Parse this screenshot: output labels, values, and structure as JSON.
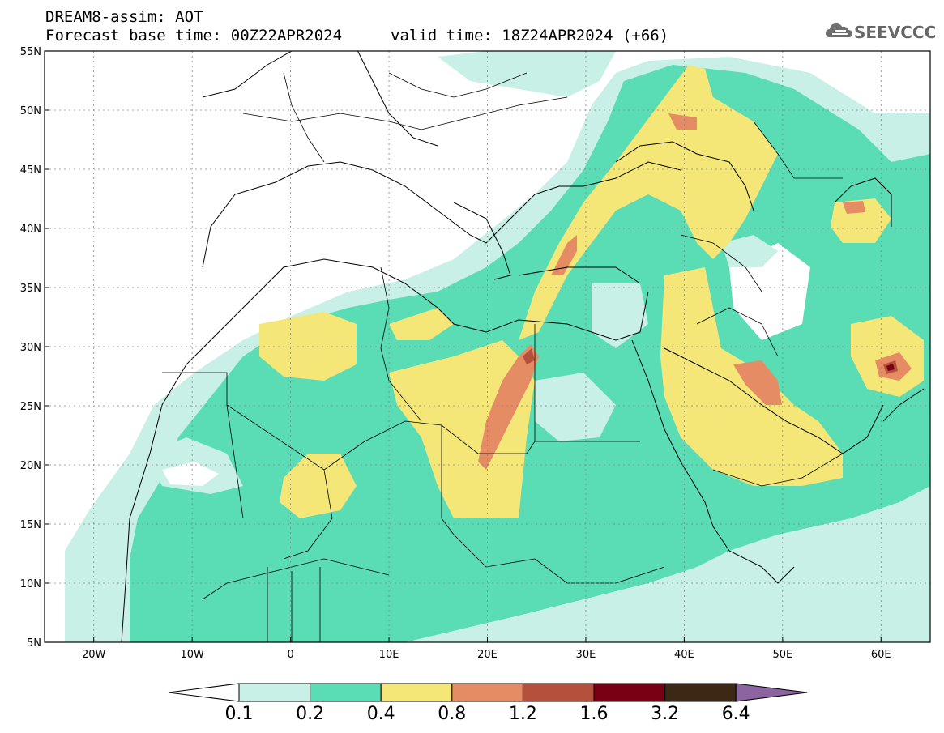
{
  "header": {
    "line1": "DREAM8-assim: AOT",
    "line2": "Forecast base time: 00Z22APR2024",
    "valid": "valid time: 18Z24APR2024 (+66)"
  },
  "logo": {
    "text": "SEEVCCC",
    "icon": "cloud-logo-icon"
  },
  "map": {
    "lon_range": [
      -25,
      65
    ],
    "lat_range": [
      5,
      55
    ],
    "lon_ticks": [
      {
        "lon": -20,
        "label": "20W"
      },
      {
        "lon": -10,
        "label": "10W"
      },
      {
        "lon": 0,
        "label": "0"
      },
      {
        "lon": 10,
        "label": "10E"
      },
      {
        "lon": 20,
        "label": "20E"
      },
      {
        "lon": 30,
        "label": "30E"
      },
      {
        "lon": 40,
        "label": "40E"
      },
      {
        "lon": 50,
        "label": "50E"
      },
      {
        "lon": 60,
        "label": "60E"
      }
    ],
    "lat_ticks": [
      {
        "lat": 5,
        "label": "5N"
      },
      {
        "lat": 10,
        "label": "10N"
      },
      {
        "lat": 15,
        "label": "15N"
      },
      {
        "lat": 20,
        "label": "20N"
      },
      {
        "lat": 25,
        "label": "25N"
      },
      {
        "lat": 30,
        "label": "30N"
      },
      {
        "lat": 35,
        "label": "35N"
      },
      {
        "lat": 40,
        "label": "40N"
      },
      {
        "lat": 45,
        "label": "45N"
      },
      {
        "lat": 50,
        "label": "50N"
      },
      {
        "lat": 55,
        "label": "55N"
      }
    ],
    "gridlines": true
  },
  "colorbar": {
    "labels": [
      "0.1",
      "0.2",
      "0.4",
      "0.8",
      "1.2",
      "1.6",
      "3.2",
      "6.4"
    ],
    "colors": [
      "#ffffff",
      "#c8f0e6",
      "#5adcb4",
      "#f5e678",
      "#e68c64",
      "#b4503c",
      "#780014",
      "#3c2814",
      "#8c64a0"
    ]
  }
}
